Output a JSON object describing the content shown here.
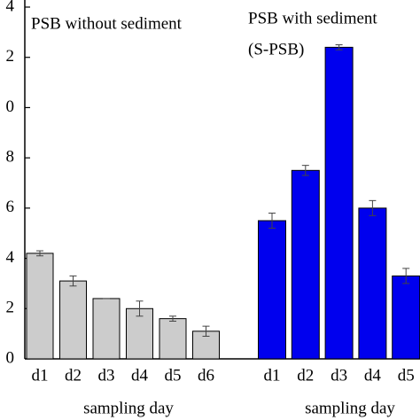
{
  "chart_data": [
    {
      "type": "bar",
      "title": "PSB without sediment",
      "xlabel": "sampling day",
      "categories": [
        "d1",
        "d2",
        "d3",
        "d4",
        "d5",
        "d6"
      ],
      "values": [
        4.2,
        3.1,
        2.4,
        2.0,
        1.6,
        1.1
      ],
      "errors": [
        0.1,
        0.2,
        0,
        0.3,
        0.1,
        0.2
      ],
      "color": "#cccccc",
      "ylim": [
        0,
        14
      ],
      "yticks": [
        {
          "value": 14,
          "label": "4"
        },
        {
          "value": 12,
          "label": "2"
        },
        {
          "value": 10,
          "label": "0"
        },
        8,
        6,
        4,
        2,
        0
      ]
    },
    {
      "type": "bar",
      "title": "PSB with sediment",
      "subtitle": "(S-PSB)",
      "xlabel": "sampling day",
      "categories": [
        "d1",
        "d2",
        "d3",
        "d4",
        "d5"
      ],
      "values": [
        5.5,
        7.5,
        12.4,
        6.0,
        3.3
      ],
      "errors": [
        0.3,
        0.2,
        0.1,
        0.3,
        0.3
      ],
      "color": "#0000ee",
      "ylim": [
        0,
        14
      ]
    }
  ]
}
